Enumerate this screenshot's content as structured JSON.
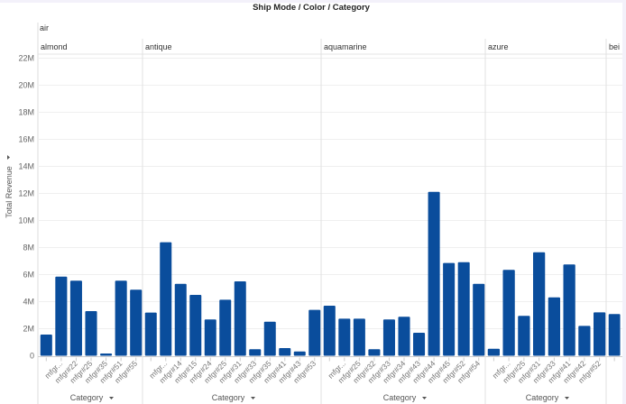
{
  "chart_data": {
    "type": "bar",
    "title": "Ship Mode  /  Color  /  Category",
    "row_header": "air",
    "ylabel": "Total Revenue",
    "xlabel": "Category",
    "ylim": [
      0,
      22
    ],
    "yticks": [
      "0",
      "2M",
      "4M",
      "6M",
      "8M",
      "10M",
      "12M",
      "14M",
      "16M",
      "18M",
      "20M",
      "22M"
    ],
    "ytick_values": [
      0,
      2,
      4,
      6,
      8,
      10,
      12,
      14,
      16,
      18,
      20,
      22
    ],
    "value_unit": "M",
    "grid": true,
    "bar_color": "#0a4d9c",
    "panes": [
      {
        "color": "almond",
        "categories": [
          "",
          "mfgr...",
          "mfgr#22",
          "mfgr#25",
          "mfgr#35",
          "mfgr#51",
          "mfgr#55"
        ],
        "values": [
          1.57,
          5.85,
          5.55,
          3.3,
          0.17,
          5.55,
          4.88
        ]
      },
      {
        "color": "antique",
        "categories": [
          "",
          "mfgr...",
          "mfgr#14",
          "mfgr#15",
          "mfgr#24",
          "mfgr#25",
          "mfgr#31",
          "mfgr#33",
          "mfgr#35",
          "mfgr#41",
          "mfgr#43",
          "mfgr#53"
        ],
        "values": [
          3.19,
          8.39,
          5.32,
          4.5,
          2.68,
          4.14,
          5.5,
          0.48,
          2.52,
          0.57,
          0.32,
          3.39
        ]
      },
      {
        "color": "aquamarine",
        "categories": [
          "",
          "mfgr...",
          "mfgr#25",
          "mfgr#32",
          "mfgr#33",
          "mfgr#34",
          "mfgr#43",
          "mfgr#44",
          "mfgr#45",
          "mfgr#52",
          "mfgr#54"
        ],
        "values": [
          3.7,
          2.74,
          2.74,
          0.48,
          2.68,
          2.88,
          1.7,
          12.12,
          6.86,
          6.92,
          5.32
        ]
      },
      {
        "color": "azure",
        "categories": [
          "",
          "mfgr...",
          "mfgr#25",
          "mfgr#31",
          "mfgr#33",
          "mfgr#41",
          "mfgr#42",
          "mfgr#52"
        ],
        "values": [
          0.52,
          6.35,
          2.95,
          7.65,
          4.32,
          6.75,
          2.21,
          3.21
        ]
      },
      {
        "color": "bei",
        "categories": [
          ""
        ],
        "values": [
          3.08
        ]
      }
    ]
  }
}
